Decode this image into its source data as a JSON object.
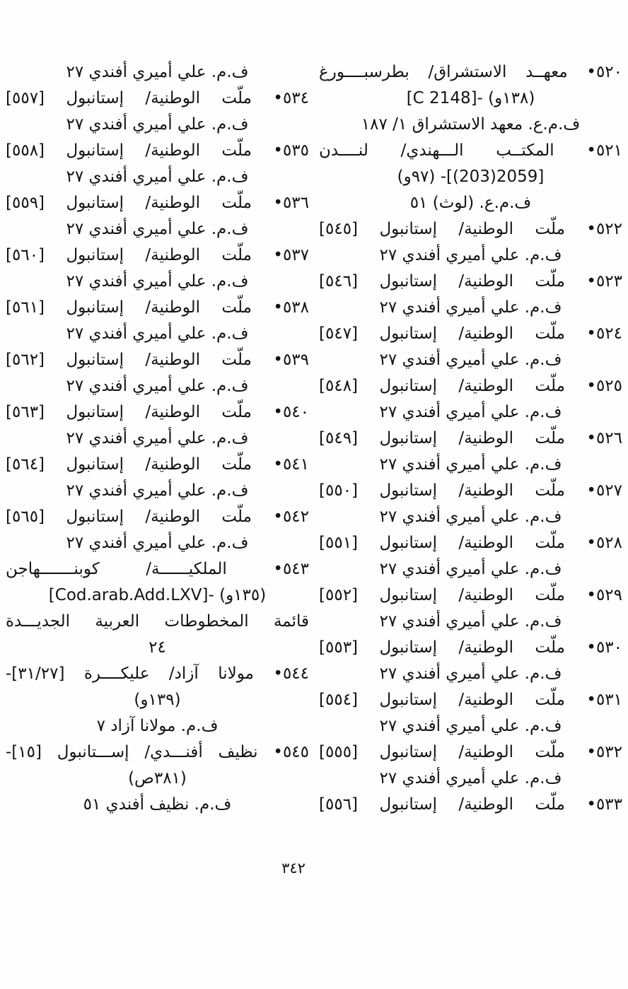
{
  "page": {
    "number": "٣٤٢",
    "language": "ar",
    "direction": "rtl",
    "ink_color": "#141414",
    "paper_color": "#fefefe"
  },
  "columns": {
    "right": [
      {
        "style": "entry",
        "text": "٥٢٠• معهــد الاستشراق/ بطرسبــــورغ"
      },
      {
        "style": "ref",
        "text": "[C 2148]- (١٣٨و)"
      },
      {
        "style": "ref",
        "text": "ف.م.ع. معهد الاستشراق ١/ ١٨٧"
      },
      {
        "style": "entry",
        "text": "٥٢١• المكتــب الـــهندي/ لنــــدن"
      },
      {
        "style": "ref",
        "text": "[2059(203)]- (٩٧و)"
      },
      {
        "style": "ref",
        "text": "ف.م.ع. (لوث) ٥١"
      },
      {
        "style": "entry",
        "text": "٥٢٢• ملّت الوطنية/ إستانبول [٥٤٥]"
      },
      {
        "style": "ref",
        "text": "ف.م. علي أميري أفندي ٢٧"
      },
      {
        "style": "entry",
        "text": "٥٢٣• ملّت الوطنية/ إستانبول [٥٤٦]"
      },
      {
        "style": "ref",
        "text": "ف.م. علي أميري أفندي ٢٧"
      },
      {
        "style": "entry",
        "text": "٥٢٤• ملّت الوطنية/ إستانبول [٥٤٧]"
      },
      {
        "style": "ref",
        "text": "ف.م. علي أميري أفندي ٢٧"
      },
      {
        "style": "entry",
        "text": "٥٢٥• ملّت الوطنية/ إستانبول [٥٤٨]"
      },
      {
        "style": "ref",
        "text": "ف.م. علي أميري أفندي ٢٧"
      },
      {
        "style": "entry",
        "text": "٥٢٦• ملّت الوطنية/ إستانبول [٥٤٩]"
      },
      {
        "style": "ref",
        "text": "ف.م. علي أميري أفندي ٢٧"
      },
      {
        "style": "entry",
        "text": "٥٢٧• ملّت الوطنية/ إستانبول [٥٥٠]"
      },
      {
        "style": "ref",
        "text": "ف.م. علي أميري أفندي ٢٧"
      },
      {
        "style": "entry",
        "text": "٥٢٨• ملّت الوطنية/ إستانبول [٥٥١]"
      },
      {
        "style": "ref",
        "text": "ف.م. علي أميري أفندي ٢٧"
      },
      {
        "style": "entry",
        "text": "٥٢٩• ملّت الوطنية/ إستانبول [٥٥٢]"
      },
      {
        "style": "ref",
        "text": "ف.م. علي أميري أفندي ٢٧"
      },
      {
        "style": "entry",
        "text": "٥٣٠• ملّت الوطنية/ إستانبول [٥٥٣]"
      },
      {
        "style": "ref",
        "text": "ف.م. علي أميري أفندي ٢٧"
      },
      {
        "style": "entry",
        "text": "٥٣١• ملّت الوطنية/ إستانبول [٥٥٤]"
      },
      {
        "style": "ref",
        "text": "ف.م. علي أميري أفندي ٢٧"
      },
      {
        "style": "entry",
        "text": "٥٣٢• ملّت الوطنية/ إستانبول [٥٥٥]"
      },
      {
        "style": "ref",
        "text": "ف.م. علي أميري أفندي ٢٧"
      },
      {
        "style": "entry",
        "text": "٥٣٣• ملّت الوطنية/ إستانبول [٥٥٦]"
      }
    ],
    "left": [
      {
        "style": "ref",
        "text": "ف.م. علي أميري أفندي ٢٧"
      },
      {
        "style": "entry",
        "text": "٥٣٤• ملّت الوطنية/ إستانبول [٥٥٧]"
      },
      {
        "style": "ref",
        "text": "ف.م. علي أميري أفندي ٢٧"
      },
      {
        "style": "entry",
        "text": "٥٣٥• ملّت الوطنية/ إستانبول [٥٥٨]"
      },
      {
        "style": "ref",
        "text": "ف.م. علي أميري أفندي ٢٧"
      },
      {
        "style": "entry",
        "text": "٥٣٦• ملّت الوطنية/ إستانبول [٥٥٩]"
      },
      {
        "style": "ref",
        "text": "ف.م. علي أميري أفندي ٢٧"
      },
      {
        "style": "entry",
        "text": "٥٣٧• ملّت الوطنية/ إستانبول [٥٦٠]"
      },
      {
        "style": "ref",
        "text": "ف.م. علي أميري أفندي ٢٧"
      },
      {
        "style": "entry",
        "text": "٥٣٨• ملّت الوطنية/ إستانبول [٥٦١]"
      },
      {
        "style": "ref",
        "text": "ف.م. علي أميري أفندي ٢٧"
      },
      {
        "style": "entry",
        "text": "٥٣٩• ملّت الوطنية/ إستانبول [٥٦٢]"
      },
      {
        "style": "ref",
        "text": "ف.م. علي أميري أفندي ٢٧"
      },
      {
        "style": "entry",
        "text": "٥٤٠• ملّت الوطنية/ إستانبول [٥٦٣]"
      },
      {
        "style": "ref",
        "text": "ف.م. علي أميري أفندي ٢٧"
      },
      {
        "style": "entry",
        "text": "٥٤١• ملّت الوطنية/ إستانبول [٥٦٤]"
      },
      {
        "style": "ref",
        "text": "ف.م. علي أميري أفندي ٢٧"
      },
      {
        "style": "entry",
        "text": "٥٤٢• ملّت الوطنية/ إستانبول [٥٦٥]"
      },
      {
        "style": "ref",
        "text": "ف.م. علي أميري أفندي ٢٧"
      },
      {
        "style": "entry",
        "text": "٥٤٣• الملكيــــــة/ كوبنـــــــهاجن"
      },
      {
        "style": "ref",
        "text": "[Cod.arab.Add.LXV]- (١٣٥و)"
      },
      {
        "style": "entry",
        "text": "قائمة المخطوطات العربية الجديـــدة"
      },
      {
        "style": "ref",
        "text": "٢٤"
      },
      {
        "style": "entry",
        "text": "٥٤٤• مولانا آزاد/ عليكــــرة [٣١/٢٧]-"
      },
      {
        "style": "ref",
        "text": "(١٣٩و)"
      },
      {
        "style": "ref",
        "text": "ف.م. مولانا آزاد ٧"
      },
      {
        "style": "entry",
        "text": "٥٤٥• نظيف أفنـــدي/ إســـتانبول [١٥]-"
      },
      {
        "style": "ref",
        "text": "(٣٨١ص)"
      },
      {
        "style": "ref",
        "text": "ف.م. نظيف أفندي ٥١"
      }
    ]
  }
}
